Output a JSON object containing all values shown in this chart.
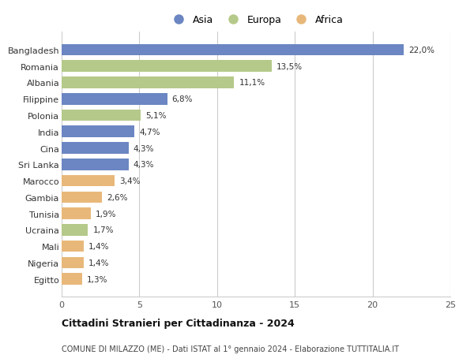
{
  "countries": [
    "Bangladesh",
    "Romania",
    "Albania",
    "Filippine",
    "Polonia",
    "India",
    "Cina",
    "Sri Lanka",
    "Marocco",
    "Gambia",
    "Tunisia",
    "Ucraina",
    "Mali",
    "Nigeria",
    "Egitto"
  ],
  "values": [
    22.0,
    13.5,
    11.1,
    6.8,
    5.1,
    4.7,
    4.3,
    4.3,
    3.4,
    2.6,
    1.9,
    1.7,
    1.4,
    1.4,
    1.3
  ],
  "labels": [
    "22,0%",
    "13,5%",
    "11,1%",
    "6,8%",
    "5,1%",
    "4,7%",
    "4,3%",
    "4,3%",
    "3,4%",
    "2,6%",
    "1,9%",
    "1,7%",
    "1,4%",
    "1,4%",
    "1,3%"
  ],
  "continents": [
    "Asia",
    "Europa",
    "Europa",
    "Asia",
    "Europa",
    "Asia",
    "Asia",
    "Asia",
    "Africa",
    "Africa",
    "Africa",
    "Europa",
    "Africa",
    "Africa",
    "Africa"
  ],
  "colors": {
    "Asia": "#6b86c2",
    "Europa": "#b5c98a",
    "Africa": "#e8b87a"
  },
  "title1": "Cittadini Stranieri per Cittadinanza - 2024",
  "title2": "COMUNE DI MILAZZO (ME) - Dati ISTAT al 1° gennaio 2024 - Elaborazione TUTTITALIA.IT",
  "xlim": [
    0,
    25
  ],
  "xticks": [
    0,
    5,
    10,
    15,
    20,
    25
  ],
  "background_color": "#ffffff",
  "grid_color": "#cccccc",
  "bar_height": 0.7
}
